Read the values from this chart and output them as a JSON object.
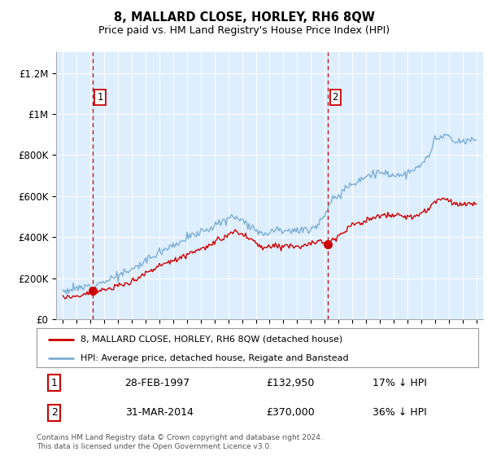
{
  "title": "8, MALLARD CLOSE, HORLEY, RH6 8QW",
  "subtitle": "Price paid vs. HM Land Registry's House Price Index (HPI)",
  "hpi_label": "HPI: Average price, detached house, Reigate and Banstead",
  "price_label": "8, MALLARD CLOSE, HORLEY, RH6 8QW (detached house)",
  "hpi_color": "#7aaed4",
  "price_color": "#cc0000",
  "dashed_color": "#cc0000",
  "plot_bg": "#ddeeff",
  "marker1_x": 1997.17,
  "marker1_y": 132950,
  "marker2_x": 2014.25,
  "marker2_y": 370000,
  "note1_date": "28-FEB-1997",
  "note1_price": "£132,950",
  "note1_hpi": "17% ↓ HPI",
  "note2_date": "31-MAR-2014",
  "note2_price": "£370,000",
  "note2_hpi": "36% ↓ HPI",
  "ylim": [
    0,
    1300000
  ],
  "xlim": [
    1994.5,
    2025.5
  ],
  "yticks": [
    0,
    200000,
    400000,
    600000,
    800000,
    1000000,
    1200000
  ],
  "ytick_labels": [
    "£0",
    "£200K",
    "£400K",
    "£600K",
    "£800K",
    "£1M",
    "£1.2M"
  ],
  "xticks": [
    1995,
    1996,
    1997,
    1998,
    1999,
    2000,
    2001,
    2002,
    2003,
    2004,
    2005,
    2006,
    2007,
    2008,
    2009,
    2010,
    2011,
    2012,
    2013,
    2014,
    2015,
    2016,
    2017,
    2018,
    2019,
    2020,
    2021,
    2022,
    2023,
    2024,
    2025
  ],
  "footer": "Contains HM Land Registry data © Crown copyright and database right 2024.\nThis data is licensed under the Open Government Licence v3.0."
}
